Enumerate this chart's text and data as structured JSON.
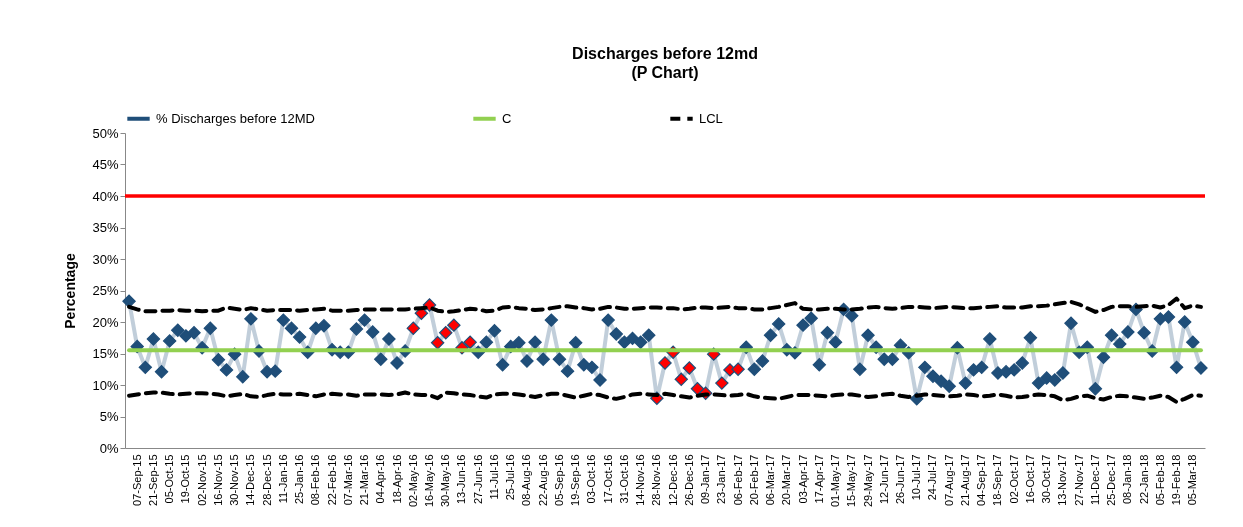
{
  "chart_data": {
    "type": "line",
    "title": "Discharges before 12md",
    "subtitle": "(P Chart)",
    "ylabel": "Percentage",
    "categories": [
      null,
      "07-Sep-15",
      null,
      "21-Sep-15",
      null,
      "05-Oct-15",
      null,
      "19-Oct-15",
      null,
      "02-Nov-15",
      null,
      "16-Nov-15",
      null,
      "30-Nov-15",
      null,
      "14-Dec-15",
      null,
      "28-Dec-15",
      null,
      "11-Jan-16",
      null,
      "25-Jan-16",
      null,
      "08-Feb-16",
      null,
      "22-Feb-16",
      null,
      "07-Mar-16",
      null,
      "21-Mar-16",
      null,
      "04-Apr-16",
      null,
      "18-Apr-16",
      null,
      "02-May-16",
      null,
      "16-May-16",
      null,
      "30-May-16",
      null,
      "13-Jun-16",
      null,
      "27-Jun-16",
      null,
      "11-Jul-16",
      null,
      "25-Jul-16",
      null,
      "08-Aug-16",
      null,
      "22-Aug-16",
      null,
      "05-Sep-16",
      null,
      "19-Sep-16",
      null,
      "03-Oct-16",
      null,
      "17-Oct-16",
      null,
      "31-Oct-16",
      null,
      "14-Nov-16",
      null,
      "28-Nov-16",
      null,
      "12-Dec-16",
      null,
      "26-Dec-16",
      null,
      "09-Jan-17",
      null,
      "23-Jan-17",
      null,
      "06-Feb-17",
      null,
      "20-Feb-17",
      null,
      "06-Mar-17",
      null,
      "20-Mar-17",
      null,
      "03-Apr-17",
      null,
      "17-Apr-17",
      null,
      "01-May-17",
      null,
      "15-May-17",
      null,
      "29-May-17",
      null,
      "12-Jun-17",
      null,
      "26-Jun-17",
      null,
      "10-Jul-17",
      null,
      "24-Jul-17",
      null,
      "07-Aug-17",
      null,
      "21-Aug-17",
      null,
      "04-Sep-17",
      null,
      "18-Sep-17",
      null,
      "02-Oct-17",
      null,
      "16-Oct-17",
      null,
      "30-Oct-17",
      null,
      "13-Nov-17",
      null,
      "27-Nov-17",
      null,
      "11-Dec-17",
      null,
      "25-Dec-17",
      null,
      "08-Jan-18",
      null,
      "22-Jan-18",
      null,
      "05-Feb-18",
      null,
      "19-Feb-18",
      null,
      "05-Mar-18",
      null
    ],
    "series": [
      {
        "name": "% Discharges before 12MD",
        "color": "#1f4e79",
        "marker": "diamond",
        "values": [
          23.3,
          16.1,
          12.8,
          17.3,
          12.1,
          17.0,
          18.7,
          17.8,
          18.3,
          15.9,
          19.0,
          14.0,
          12.4,
          14.9,
          11.3,
          20.5,
          15.4,
          12.1,
          12.2,
          20.3,
          19.0,
          17.6,
          15.2,
          19.0,
          19.4,
          15.6,
          15.2,
          15.2,
          18.9,
          20.3,
          18.4,
          14.1,
          17.3,
          13.5,
          15.4,
          19.0,
          21.4,
          22.7,
          16.7,
          18.3,
          19.5,
          15.9,
          16.8,
          15.2,
          16.8,
          18.6,
          13.2,
          16.1,
          16.7,
          13.8,
          16.8,
          14.1,
          20.3,
          14.1,
          12.2,
          16.7,
          13.2,
          12.8,
          10.8,
          20.3,
          18.1,
          16.8,
          17.4,
          16.8,
          17.9,
          7.9,
          13.5,
          15.2,
          10.9,
          12.7,
          9.4,
          8.7,
          14.9,
          10.3,
          12.4,
          12.5,
          16.0,
          12.5,
          13.8,
          17.9,
          19.7,
          15.6,
          15.1,
          19.5,
          20.6,
          13.2,
          18.3,
          16.8,
          22.0,
          21.0,
          12.5,
          17.9,
          16.0,
          14.1,
          14.1,
          16.3,
          15.1,
          7.8,
          12.8,
          11.4,
          10.6,
          9.8,
          15.9,
          10.3,
          12.4,
          12.8,
          17.3,
          11.9,
          12.1,
          12.4,
          13.5,
          17.5,
          10.3,
          11.1,
          10.8,
          11.9,
          19.8,
          15.2,
          16.0,
          9.4,
          14.4,
          17.9,
          16.5,
          18.4,
          22.0,
          18.3,
          15.4,
          20.5,
          20.8,
          12.8,
          20.0,
          16.8,
          12.7
        ],
        "colors": [
          "#1f4e79",
          "#1f4e79",
          "#1f4e79",
          "#1f4e79",
          "#1f4e79",
          "#1f4e79",
          "#1f4e79",
          "#1f4e79",
          "#1f4e79",
          "#1f4e79",
          "#1f4e79",
          "#1f4e79",
          "#1f4e79",
          "#1f4e79",
          "#1f4e79",
          "#1f4e79",
          "#1f4e79",
          "#1f4e79",
          "#1f4e79",
          "#1f4e79",
          "#1f4e79",
          "#1f4e79",
          "#1f4e79",
          "#1f4e79",
          "#1f4e79",
          "#1f4e79",
          "#1f4e79",
          "#1f4e79",
          "#1f4e79",
          "#1f4e79",
          "#1f4e79",
          "#1f4e79",
          "#1f4e79",
          "#1f4e79",
          "#1f4e79",
          "#ff0000",
          "#ff0000",
          "#ff0000",
          "#ff0000",
          "#ff0000",
          "#ff0000",
          "#ff0000",
          "#ff0000",
          "#1f4e79",
          "#1f4e79",
          "#1f4e79",
          "#1f4e79",
          "#1f4e79",
          "#1f4e79",
          "#1f4e79",
          "#1f4e79",
          "#1f4e79",
          "#1f4e79",
          "#1f4e79",
          "#1f4e79",
          "#1f4e79",
          "#1f4e79",
          "#1f4e79",
          "#1f4e79",
          "#1f4e79",
          "#1f4e79",
          "#1f4e79",
          "#1f4e79",
          "#1f4e79",
          "#1f4e79",
          "#ff0000",
          "#ff0000",
          "#ff0000",
          "#ff0000",
          "#ff0000",
          "#ff0000",
          "#ff0000",
          "#ff0000",
          "#ff0000",
          "#ff0000",
          "#ff0000",
          "#1f4e79",
          "#1f4e79",
          "#1f4e79",
          "#1f4e79",
          "#1f4e79",
          "#1f4e79",
          "#1f4e79",
          "#1f4e79",
          "#1f4e79",
          "#1f4e79",
          "#1f4e79",
          "#1f4e79",
          "#1f4e79",
          "#1f4e79",
          "#1f4e79",
          "#1f4e79",
          "#1f4e79",
          "#1f4e79",
          "#1f4e79",
          "#1f4e79",
          "#1f4e79",
          "#1f4e79",
          "#1f4e79",
          "#1f4e79",
          "#1f4e79",
          "#1f4e79",
          "#1f4e79",
          "#1f4e79",
          "#1f4e79",
          "#1f4e79",
          "#1f4e79",
          "#1f4e79",
          "#1f4e79",
          "#1f4e79",
          "#1f4e79",
          "#1f4e79",
          "#1f4e79",
          "#1f4e79",
          "#1f4e79",
          "#1f4e79",
          "#1f4e79",
          "#1f4e79",
          "#1f4e79",
          "#1f4e79",
          "#1f4e79",
          "#1f4e79",
          "#1f4e79",
          "#1f4e79",
          "#1f4e79",
          "#1f4e79",
          "#1f4e79",
          "#1f4e79",
          "#1f4e79",
          "#1f4e79",
          "#1f4e79",
          "#1f4e79",
          "#1f4e79"
        ]
      },
      {
        "name": "C",
        "color": "#92d050",
        "values": [
          15.5,
          15.5,
          15.5,
          15.5,
          15.5,
          15.5,
          15.5,
          15.5,
          15.5,
          15.5,
          15.5,
          15.5,
          15.5,
          15.5,
          15.5,
          15.5,
          15.5,
          15.5,
          15.5,
          15.5,
          15.5,
          15.5,
          15.5,
          15.5,
          15.5,
          15.5,
          15.5,
          15.5,
          15.5,
          15.5,
          15.5,
          15.5,
          15.5,
          15.5,
          15.5,
          15.5,
          15.5,
          15.5,
          15.5,
          15.5,
          15.5,
          15.5,
          15.5,
          15.5,
          15.5,
          15.5,
          15.5,
          15.5,
          15.5,
          15.5,
          15.5,
          15.5,
          15.5,
          15.5,
          15.5,
          15.5,
          15.5,
          15.5,
          15.5,
          15.5,
          15.5,
          15.5,
          15.5,
          15.5,
          15.5,
          15.5,
          15.5,
          15.5,
          15.5,
          15.5,
          15.5,
          15.5,
          15.5,
          15.5,
          15.5,
          15.5,
          15.5,
          15.5,
          15.5,
          15.5,
          15.5,
          15.5,
          15.5,
          15.5,
          15.5,
          15.5,
          15.5,
          15.5,
          15.5,
          15.5,
          15.5,
          15.5,
          15.5,
          15.5,
          15.5,
          15.5,
          15.5,
          15.5,
          15.5,
          15.5,
          15.5,
          15.5,
          15.5,
          15.5,
          15.5,
          15.5,
          15.5,
          15.5,
          15.5,
          15.5,
          15.5,
          15.5,
          15.5,
          15.5,
          15.5,
          15.5,
          15.5,
          15.5,
          15.5,
          15.5,
          15.5,
          15.5,
          15.5,
          15.5,
          15.5,
          15.5,
          15.5,
          15.5,
          15.5,
          15.5,
          15.5,
          15.5,
          15.5
        ]
      },
      {
        "name": "LCL",
        "color": "#000000",
        "line_style": "dashed",
        "values": [
          8.3,
          8.5,
          8.7,
          8.8,
          8.8,
          8.6,
          8.5,
          8.6,
          8.7,
          8.7,
          8.6,
          8.5,
          8.2,
          8.4,
          8.6,
          8.2,
          8.1,
          8.4,
          8.6,
          8.5,
          8.5,
          8.6,
          8.4,
          8.2,
          8.5,
          8.6,
          8.5,
          8.5,
          8.3,
          8.5,
          8.5,
          8.5,
          8.4,
          8.5,
          8.8,
          8.5,
          8.4,
          8.4,
          7.9,
          8.8,
          8.7,
          8.5,
          8.4,
          8.2,
          8.0,
          8.5,
          8.6,
          8.6,
          8.5,
          8.3,
          8.1,
          8.4,
          8.6,
          8.6,
          8.3,
          8.0,
          8.3,
          8.6,
          8.4,
          8.0,
          7.8,
          8.1,
          8.5,
          8.6,
          8.5,
          8.4,
          8.6,
          8.4,
          8.2,
          8.0,
          8.3,
          8.5,
          8.5,
          8.4,
          8.3,
          8.4,
          8.6,
          8.2,
          8.0,
          7.9,
          7.8,
          8.1,
          8.4,
          8.4,
          8.4,
          8.3,
          8.2,
          8.4,
          8.5,
          8.5,
          8.3,
          8.1,
          8.2,
          8.5,
          8.6,
          8.3,
          8.1,
          8.3,
          8.5,
          8.4,
          8.3,
          8.2,
          8.3,
          8.5,
          8.4,
          8.2,
          8.3,
          8.5,
          8.3,
          8.0,
          8.1,
          8.3,
          8.5,
          8.4,
          8.2,
          7.6,
          7.8,
          8.2,
          8.3,
          7.9,
          7.7,
          8.1,
          8.3,
          8.2,
          8.0,
          7.8,
          8.0,
          8.3,
          8.1,
          7.3,
          7.8,
          8.4,
          8.3
        ]
      },
      {
        "color": "#000000",
        "line_style": "dashed",
        "values": [
          22.4,
          22.0,
          21.7,
          21.7,
          21.8,
          21.8,
          21.9,
          21.8,
          21.8,
          21.7,
          21.8,
          21.8,
          22.3,
          22.1,
          21.9,
          22.2,
          22.0,
          21.8,
          21.9,
          21.9,
          21.9,
          21.8,
          21.9,
          22.0,
          22.1,
          21.8,
          21.8,
          21.8,
          21.9,
          22.0,
          22.0,
          22.0,
          22.0,
          22.0,
          22.0,
          22.1,
          22.2,
          22.3,
          21.8,
          21.6,
          21.7,
          21.9,
          22.1,
          22.0,
          21.7,
          21.8,
          22.3,
          22.4,
          22.2,
          22.1,
          21.9,
          22.0,
          22.2,
          22.4,
          22.5,
          22.3,
          22.2,
          22.0,
          22.1,
          22.4,
          22.3,
          22.1,
          22.1,
          22.2,
          22.3,
          22.3,
          22.2,
          22.2,
          22.0,
          22.1,
          22.3,
          22.3,
          22.2,
          22.3,
          22.4,
          22.2,
          22.2,
          22.0,
          22.0,
          22.2,
          22.4,
          22.7,
          23.0,
          22.1,
          22.0,
          22.0,
          22.1,
          22.1,
          22.0,
          22.0,
          22.1,
          22.3,
          22.4,
          22.2,
          22.1,
          22.2,
          22.4,
          22.4,
          22.3,
          22.2,
          22.3,
          22.4,
          22.3,
          22.2,
          22.2,
          22.3,
          22.4,
          22.5,
          22.3,
          22.3,
          22.3,
          22.5,
          22.5,
          22.6,
          22.8,
          23.0,
          23.2,
          22.8,
          22.2,
          21.6,
          21.9,
          22.4,
          22.5,
          22.5,
          22.4,
          22.5,
          22.6,
          22.3,
          22.7,
          23.7,
          22.2,
          22.6,
          22.4
        ]
      }
    ],
    "ref_lines": [
      {
        "axis": "y",
        "value": 40,
        "color": "#ff0000"
      }
    ],
    "ylim": [
      0,
      50
    ],
    "yticks": [
      {
        "value": 0,
        "label": "0%"
      },
      {
        "value": 5,
        "label": "5%"
      },
      {
        "value": 10,
        "label": "10%"
      },
      {
        "value": 15,
        "label": "15%"
      },
      {
        "value": 20,
        "label": "20%"
      },
      {
        "value": 25,
        "label": "25%"
      },
      {
        "value": 30,
        "label": "30%"
      },
      {
        "value": 35,
        "label": "35%"
      },
      {
        "value": 40,
        "label": "40%"
      },
      {
        "value": 45,
        "label": "45%"
      },
      {
        "value": 50,
        "label": "50%"
      }
    ],
    "legend": "top"
  }
}
